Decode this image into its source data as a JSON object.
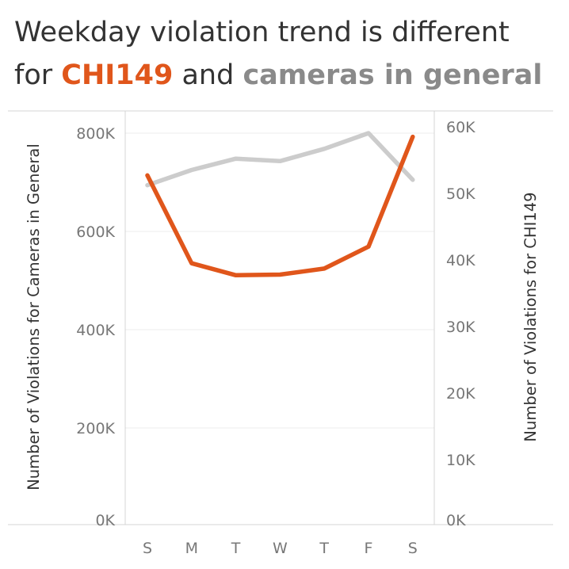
{
  "title": {
    "part1": "Weekday violation trend is different",
    "part2": "for ",
    "highlight1": "CHI149",
    "part3": " and ",
    "highlight2": "cameras in general"
  },
  "colors": {
    "chi149": "#e0561b",
    "general": "#cccccc",
    "title_text": "#333333",
    "highlight_general": "#8a8a8a"
  },
  "chart_data": {
    "type": "line",
    "categories": [
      "S",
      "M",
      "T",
      "W",
      "T",
      "F",
      "S"
    ],
    "series": [
      {
        "key": "general",
        "axis": "left",
        "values": [
          694000,
          725000,
          748000,
          743000,
          768000,
          800000,
          705000
        ]
      },
      {
        "key": "chi149",
        "axis": "right",
        "values": [
          52700,
          39500,
          37700,
          37800,
          38700,
          42000,
          58500
        ]
      }
    ],
    "y_left": {
      "label": "Number of Violations for Cameras in General",
      "ylim": [
        0,
        800000
      ],
      "ticks": [
        0,
        200000,
        400000,
        600000,
        800000
      ],
      "tick_labels": [
        "0K",
        "200K",
        "400K",
        "600K",
        "800K"
      ]
    },
    "y_right": {
      "label": "Number of Violations for CHI149",
      "ylim": [
        0,
        60000
      ],
      "ticks": [
        0,
        10000,
        20000,
        30000,
        40000,
        50000,
        60000
      ],
      "tick_labels": [
        "0K",
        "10K",
        "20K",
        "30K",
        "40K",
        "50K",
        "60K"
      ]
    },
    "grid": true,
    "legend": "none"
  }
}
